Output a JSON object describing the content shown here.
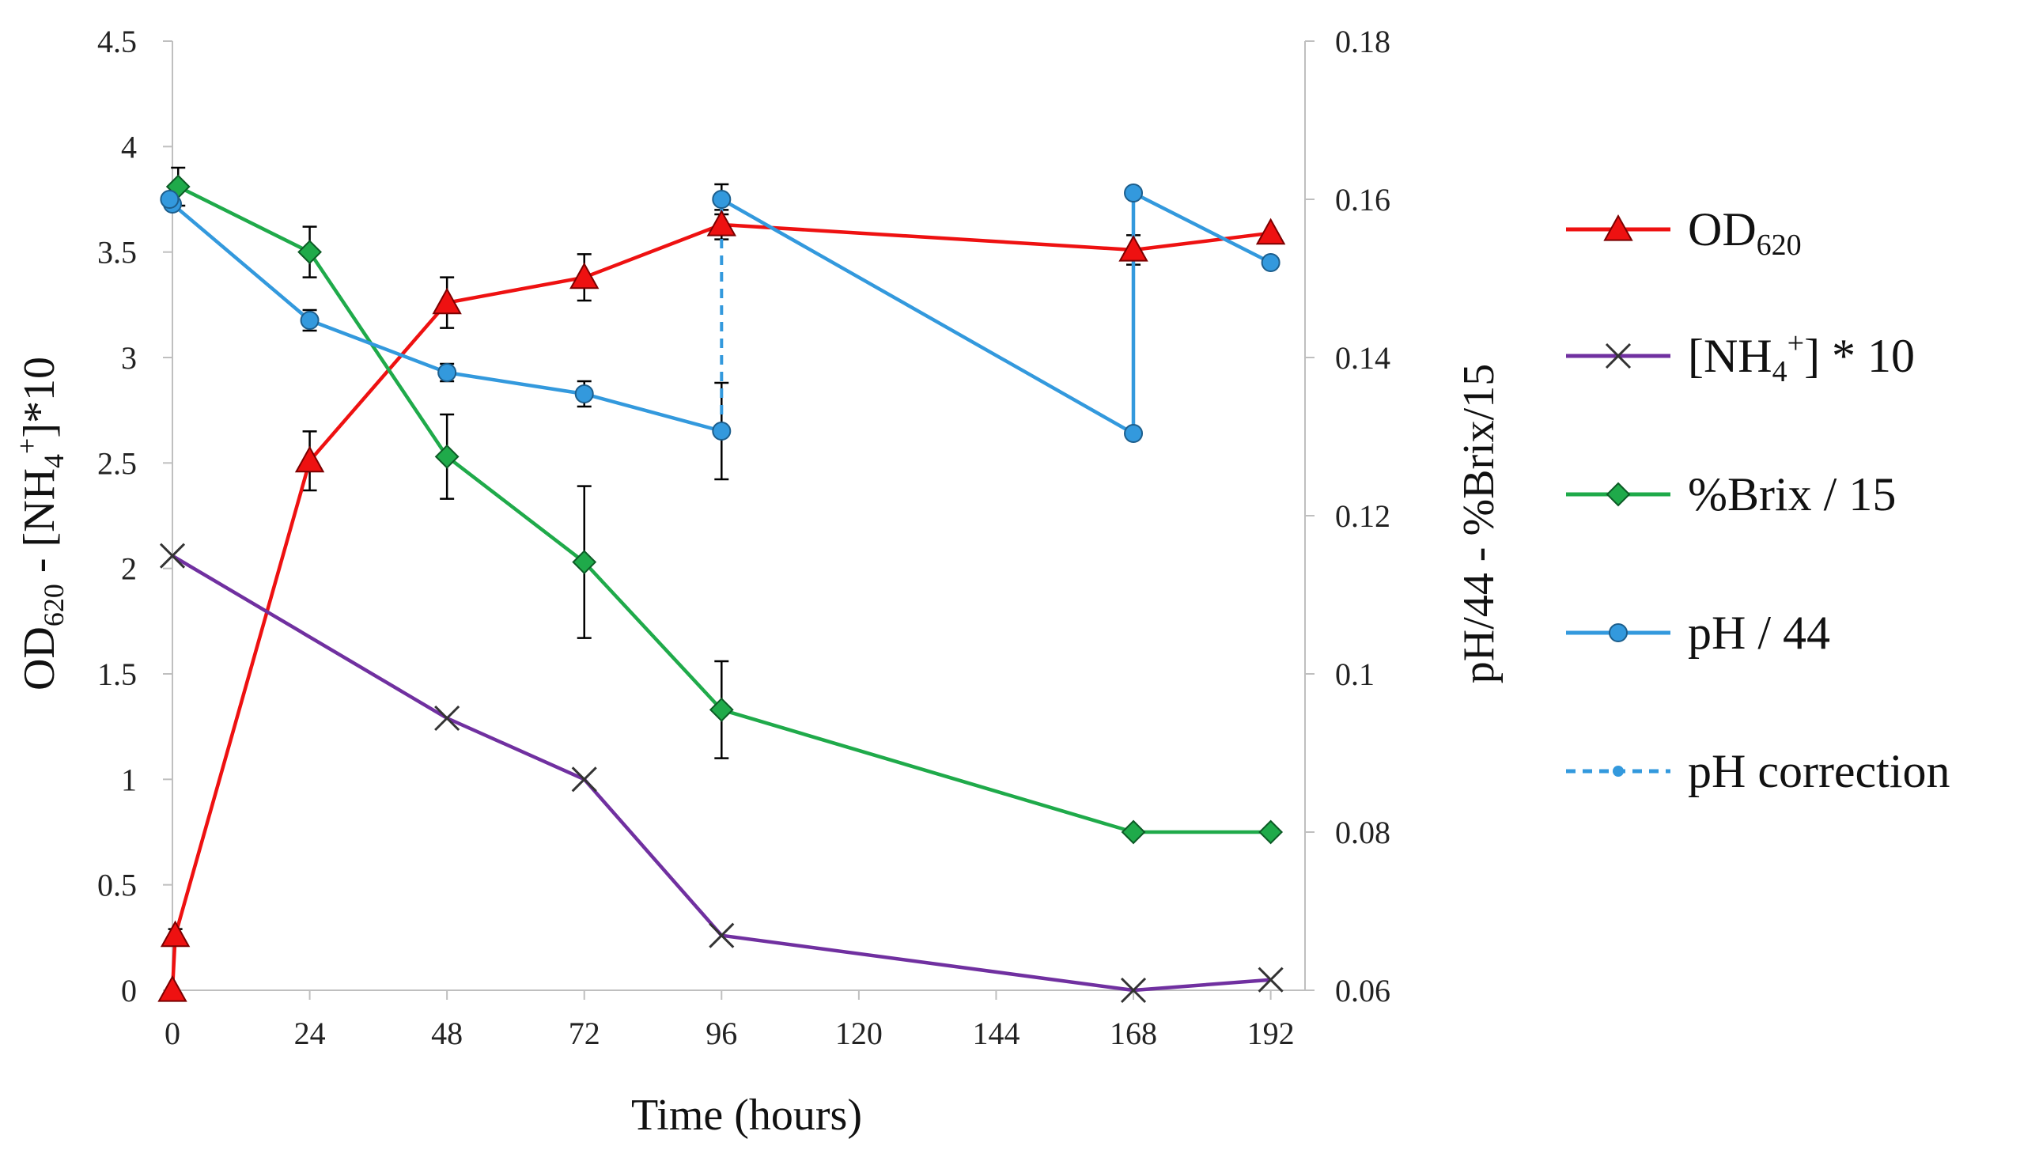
{
  "chart_data": {
    "type": "line",
    "title": "",
    "xlabel": "Time (hours)",
    "ylabel_left": {
      "main": "OD",
      "sub": "620",
      "mid": " - [NH",
      "sub2": "4",
      "sup": "+",
      "tail": "]*10"
    },
    "ylabel_right": "pH/44 - %Brix/15",
    "x_ticks": [
      "0",
      "24",
      "48",
      "72",
      "96",
      "120",
      "144",
      "168",
      "192"
    ],
    "y_left_ticks": [
      "0",
      "0.5",
      "1",
      "1.5",
      "2",
      "2.5",
      "3",
      "3.5",
      "4",
      "4.5"
    ],
    "y_right_ticks": [
      "0.06",
      "0.08",
      "0.1",
      "0.12",
      "0.14",
      "0.16",
      "0.18"
    ],
    "xlim": [
      0,
      198
    ],
    "ylim_left": [
      0,
      4.5
    ],
    "ylim_right": [
      0.06,
      0.18
    ],
    "grid": false,
    "legend_position": "right",
    "series": [
      {
        "key": "od",
        "name": "OD620",
        "legend": {
          "base": "OD",
          "sub": "620"
        },
        "axis": "left",
        "color": "#ee1111",
        "marker": "triangle",
        "line": "solid",
        "points": [
          {
            "x": 0,
            "y": 0
          },
          {
            "x": 0.5,
            "y": 0.26,
            "err": 0.03
          },
          {
            "x": 24,
            "y": 2.51,
            "err": 0.14
          },
          {
            "x": 48,
            "y": 3.26,
            "err": 0.12
          },
          {
            "x": 72,
            "y": 3.38,
            "err": 0.11
          },
          {
            "x": 96,
            "y": 3.63,
            "err": 0.07
          },
          {
            "x": 168,
            "y": 3.51,
            "err": 0.07
          },
          {
            "x": 192,
            "y": 3.59
          }
        ]
      },
      {
        "key": "nh4",
        "name": "[NH4+] * 10",
        "legend": {
          "pre": "[NH",
          "sub": "4",
          "sup": "+",
          "post": "] * 10"
        },
        "axis": "left",
        "color": "#7030a0",
        "marker": "x",
        "line": "solid",
        "points": [
          {
            "x": 0,
            "y": 2.06
          },
          {
            "x": 48,
            "y": 1.29
          },
          {
            "x": 72,
            "y": 1.0
          },
          {
            "x": 96,
            "y": 0.26
          },
          {
            "x": 168,
            "y": 0.0
          },
          {
            "x": 192,
            "y": 0.05
          }
        ]
      },
      {
        "key": "brix",
        "name": "%Brix / 15",
        "legend": {
          "text": "%Brix / 15"
        },
        "axis": "left",
        "color": "#1faa4a",
        "marker": "diamond",
        "line": "solid",
        "points": [
          {
            "x": 1,
            "y": 3.81,
            "err": 0.09
          },
          {
            "x": 24,
            "y": 3.5,
            "err": 0.12
          },
          {
            "x": 48,
            "y": 2.53,
            "err": 0.2
          },
          {
            "x": 72,
            "y": 2.03,
            "err": 0.36
          },
          {
            "x": 96,
            "y": 1.33,
            "err": 0.23
          },
          {
            "x": 168,
            "y": 0.75
          },
          {
            "x": 192,
            "y": 0.75
          }
        ]
      },
      {
        "key": "ph",
        "name": "pH / 44",
        "legend": {
          "text": "pH / 44"
        },
        "axis": "right",
        "color": "#3399dd",
        "marker": "circle",
        "line": "solid",
        "segments": [
          [
            {
              "x": 0,
              "y": 0.1594
            },
            {
              "x": 24,
              "y": 0.1447,
              "err": 0.0013
            },
            {
              "x": 48,
              "y": 0.1381,
              "err": 0.0011
            },
            {
              "x": 72,
              "y": 0.1354,
              "err": 0.0016
            },
            {
              "x": 96,
              "y": 0.1307,
              "err": 0.0061
            }
          ],
          [
            {
              "x": 96,
              "y": 0.16,
              "err": 0.0019
            },
            {
              "x": 168,
              "y": 0.1304
            },
            {
              "x": 168,
              "y": 0.1608
            },
            {
              "x": 192,
              "y": 0.152
            }
          ]
        ],
        "extra_points": [
          {
            "x": -0.5,
            "y": 0.16
          }
        ]
      },
      {
        "key": "phcorr",
        "name": "pH correction",
        "legend": {
          "text": "pH correction"
        },
        "axis": "right",
        "color": "#3399dd",
        "marker": "none",
        "line": "dashed",
        "segments": [
          [
            {
              "x": 96,
              "y": 0.1307
            },
            {
              "x": 96,
              "y": 0.16
            }
          ],
          [
            {
              "x": 168,
              "y": 0.1304
            },
            {
              "x": 168,
              "y": 0.1608
            }
          ]
        ]
      }
    ]
  }
}
